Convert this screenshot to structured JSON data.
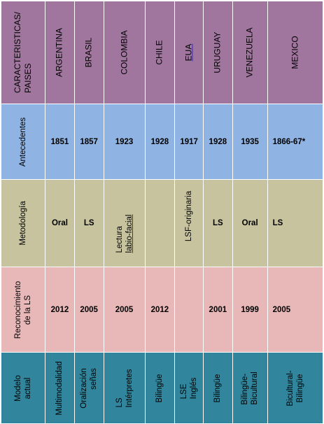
{
  "header": {
    "label_line1": "CARACTERISTICAS/",
    "label_line2": "PAISES",
    "countries": [
      "ARGENTINA",
      "BRASIL",
      "COLOMBIA",
      "CHILE",
      "EUA",
      "URUGUAY",
      "VENEZUELA",
      "MEXICO"
    ]
  },
  "rows": {
    "antecedentes": {
      "label": "Antecedentes",
      "values": [
        "1851",
        "1857",
        "1923",
        "1928",
        "1917",
        "1928",
        "1935",
        "1866-67*"
      ]
    },
    "metodologia": {
      "label": "Metodología",
      "argentina": "Oral",
      "brasil": "LS",
      "colombia_line1": "Lectura",
      "colombia_line2": "labio-facial",
      "eua": "LSF-originaria",
      "uruguay": "LS",
      "venezuela": "Oral",
      "mexico": "LS"
    },
    "reconocimiento": {
      "label_line1": "Reconocimiento",
      "label_line2": "de la LS",
      "argentina": "2012",
      "brasil": "2005",
      "colombia": "2005",
      "chile": "2012",
      "uruguay": "2001",
      "venezuela": "1999",
      "mexico": "2005"
    },
    "modelo": {
      "label_line1": "Modelo",
      "label_line2": "actual",
      "argentina": "Multimodalidad",
      "brasil_line1": "Oralización",
      "brasil_line2": "señas",
      "colombia_line1": "LS",
      "colombia_line2": "Intérpretes",
      "chile": "Bilingüe",
      "eua_line1": "LSE",
      "eua_line2": "Inglés",
      "uruguay": "Bilingüe",
      "venezuela_line1": "Bilingüe-",
      "venezuela_line2": "Bicultural",
      "mexico_line1": "Bicultural-",
      "mexico_line2": "Bilingüe"
    }
  }
}
